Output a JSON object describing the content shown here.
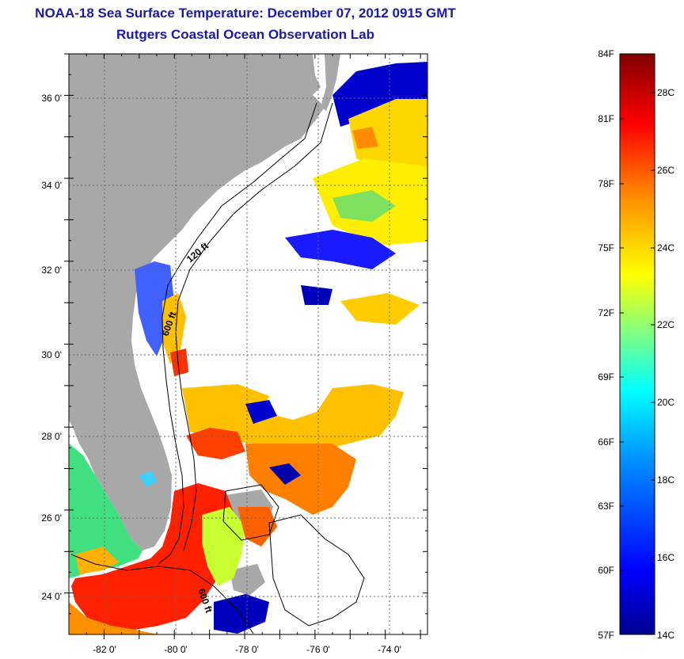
{
  "title": {
    "line1": "NOAA-18 Sea Surface Temperature:  December 07, 2012 0915 GMT",
    "line2": "Rutgers Coastal Ocean Observation Lab"
  },
  "map": {
    "lon_range": [
      -83,
      -72.8
    ],
    "lat_range": [
      23,
      37
    ],
    "lon_ticks": [
      {
        "value": -82,
        "label": "-82 0'"
      },
      {
        "value": -80,
        "label": "-80 0'"
      },
      {
        "value": -78,
        "label": "-78 0'"
      },
      {
        "value": -76,
        "label": "-76 0'"
      },
      {
        "value": -74,
        "label": "-74 0'"
      }
    ],
    "lat_ticks": [
      {
        "value": 24,
        "label": "24 0'"
      },
      {
        "value": 26,
        "label": "26 0'"
      },
      {
        "value": 28,
        "label": "28 0'"
      },
      {
        "value": 30,
        "label": "30 0'"
      },
      {
        "value": 32,
        "label": "32 0'"
      },
      {
        "value": 34,
        "label": "34 0'"
      },
      {
        "value": 36,
        "label": "36 0'"
      }
    ],
    "contour_labels": [
      "120 ft",
      "600 ft",
      "600 ft"
    ],
    "colors": {
      "land": "#a8a8a8",
      "cloud": "#ffffff",
      "grid": "#666666"
    }
  },
  "colorbar": {
    "fahrenheit": [
      "84F",
      "81F",
      "78F",
      "75F",
      "72F",
      "69F",
      "66F",
      "63F",
      "60F",
      "57F"
    ],
    "celsius": [
      "28C",
      "26C",
      "24C",
      "22C",
      "20C",
      "18C",
      "16C",
      "14C"
    ],
    "gradient": [
      "#00008f",
      "#0000ff",
      "#0080ff",
      "#00ffff",
      "#80ff80",
      "#ffff00",
      "#ff8000",
      "#ff0000",
      "#800000"
    ]
  }
}
